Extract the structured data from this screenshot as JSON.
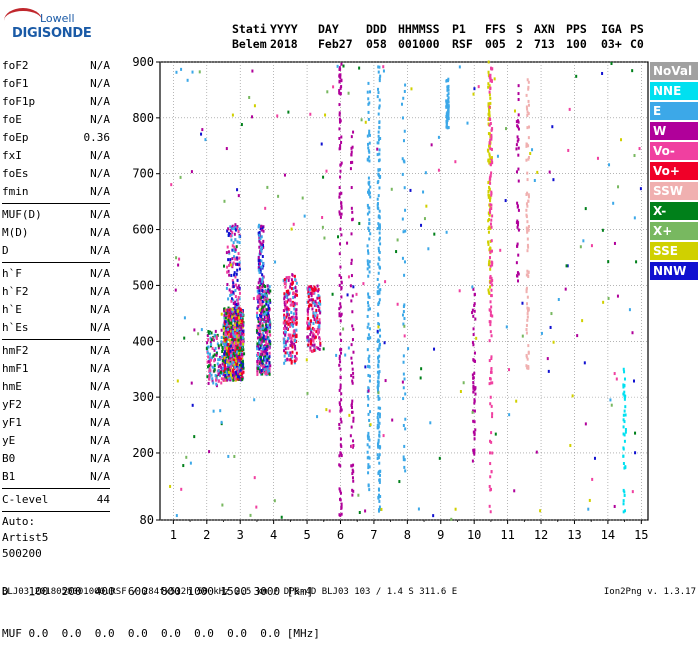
{
  "logo": {
    "line1": "Lowell",
    "line2": "DIGISONDE"
  },
  "header": {
    "row1": [
      "Stati",
      "YYYY",
      "DAY",
      "DDD",
      "HHMMSS",
      "P1",
      "FFS",
      "S",
      "AXN",
      "PPS",
      "IGA",
      "PS"
    ],
    "row2": [
      "Belem",
      "2018",
      "Feb27",
      "058",
      "001000",
      "RSF",
      "005",
      "2",
      "713",
      "100",
      "03+",
      "C0"
    ]
  },
  "params": {
    "g1": [
      {
        "name": "foF2",
        "value": "N/A"
      },
      {
        "name": "foF1",
        "value": "N/A"
      },
      {
        "name": "foF1p",
        "value": "N/A"
      },
      {
        "name": "foE",
        "value": "N/A"
      },
      {
        "name": "foEp",
        "value": "0.36"
      },
      {
        "name": "fxI",
        "value": "N/A"
      },
      {
        "name": "foEs",
        "value": "N/A"
      },
      {
        "name": "fmin",
        "value": "N/A"
      }
    ],
    "g2": [
      {
        "name": "MUF(D)",
        "value": "N/A"
      },
      {
        "name": "M(D)",
        "value": "N/A"
      },
      {
        "name": "D",
        "value": "N/A"
      }
    ],
    "g3": [
      {
        "name": "h`F",
        "value": "N/A"
      },
      {
        "name": "h`F2",
        "value": "N/A"
      },
      {
        "name": "h`E",
        "value": "N/A"
      },
      {
        "name": "h`Es",
        "value": "N/A"
      }
    ],
    "g4": [
      {
        "name": "hmF2",
        "value": "N/A"
      },
      {
        "name": "hmF1",
        "value": "N/A"
      },
      {
        "name": "hmE",
        "value": "N/A"
      },
      {
        "name": "yF2",
        "value": "N/A"
      },
      {
        "name": "yF1",
        "value": "N/A"
      },
      {
        "name": "yE",
        "value": "N/A"
      },
      {
        "name": "B0",
        "value": "N/A"
      },
      {
        "name": "B1",
        "value": "N/A"
      }
    ],
    "g5": [
      {
        "name": "C-level",
        "value": "44"
      }
    ],
    "auto": [
      "Auto:",
      "Artist5",
      "500200"
    ]
  },
  "legend": [
    {
      "label": "NoVal",
      "color": "#a0a0a0"
    },
    {
      "label": "NNE",
      "color": "#00e0f0"
    },
    {
      "label": "E",
      "color": "#3ca8e8"
    },
    {
      "label": "W",
      "color": "#b0009a"
    },
    {
      "label": "Vo-",
      "color": "#f040a0"
    },
    {
      "label": "Vo+",
      "color": "#f00028"
    },
    {
      "label": "SSW",
      "color": "#f0b0b0"
    },
    {
      "label": "X-",
      "color": "#00801a"
    },
    {
      "label": "X+",
      "color": "#78b860"
    },
    {
      "label": "SSE",
      "color": "#d0d000"
    },
    {
      "label": "NNW",
      "color": "#1010d0"
    }
  ],
  "chart_data": {
    "type": "scatter",
    "xlim": [
      0.6,
      15.2
    ],
    "ylim": [
      80,
      900
    ],
    "xticks": [
      "1",
      "2",
      "3",
      "4",
      "5",
      "6",
      "7",
      "8",
      "9",
      "10",
      "11",
      "12",
      "13",
      "14",
      "15"
    ],
    "yticks": [
      "80",
      "200",
      "300",
      "400",
      "500",
      "600",
      "700",
      "800",
      "900"
    ],
    "grid": true,
    "clusters": [
      {
        "x": [
          2.5,
          3.1
        ],
        "y": [
          330,
          460
        ],
        "n": 900,
        "colors": [
          "#b0009a",
          "#f040a0",
          "#3ca8e8",
          "#f00028",
          "#1010d0",
          "#00801a",
          "#d0d000"
        ]
      },
      {
        "x": [
          2.6,
          3.0
        ],
        "y": [
          460,
          610
        ],
        "n": 120,
        "colors": [
          "#b0009a",
          "#f040a0",
          "#3ca8e8",
          "#1010d0"
        ]
      },
      {
        "x": [
          2.0,
          2.5
        ],
        "y": [
          320,
          420
        ],
        "n": 120,
        "colors": [
          "#b0009a",
          "#f040a0",
          "#00801a",
          "#3ca8e8"
        ]
      },
      {
        "x": [
          3.5,
          3.9
        ],
        "y": [
          340,
          500
        ],
        "n": 400,
        "colors": [
          "#b0009a",
          "#3ca8e8",
          "#f040a0",
          "#1010d0",
          "#00801a"
        ]
      },
      {
        "x": [
          3.55,
          3.7
        ],
        "y": [
          500,
          610
        ],
        "n": 80,
        "colors": [
          "#1010d0",
          "#3ca8e8",
          "#b0009a"
        ]
      },
      {
        "x": [
          4.3,
          4.7
        ],
        "y": [
          360,
          520
        ],
        "n": 220,
        "colors": [
          "#b0009a",
          "#f040a0",
          "#3ca8e8",
          "#f00028"
        ]
      },
      {
        "x": [
          5.0,
          5.4
        ],
        "y": [
          380,
          500
        ],
        "n": 160,
        "colors": [
          "#b0009a",
          "#f040a0",
          "#3ca8e8",
          "#f00028"
        ]
      }
    ],
    "columns": [
      {
        "x": 6.0,
        "y": [
          80,
          900
        ],
        "n": 120,
        "color": "#b0009a"
      },
      {
        "x": 6.35,
        "y": [
          120,
          780
        ],
        "n": 60,
        "color": "#b0009a"
      },
      {
        "x": 6.85,
        "y": [
          120,
          870
        ],
        "n": 110,
        "color": "#3ca8e8"
      },
      {
        "x": 7.15,
        "y": [
          90,
          900
        ],
        "n": 180,
        "color": "#3ca8e8"
      },
      {
        "x": 7.9,
        "y": [
          150,
          870
        ],
        "n": 40,
        "color": "#3ca8e8"
      },
      {
        "x": 9.2,
        "y": [
          780,
          870
        ],
        "n": 60,
        "color": "#3ca8e8"
      },
      {
        "x": 10.0,
        "y": [
          180,
          500
        ],
        "n": 50,
        "color": "#b0009a"
      },
      {
        "x": 10.45,
        "y": [
          480,
          900
        ],
        "n": 90,
        "color": "#d0d000"
      },
      {
        "x": 10.5,
        "y": [
          80,
          900
        ],
        "n": 120,
        "color": "#f040a0"
      },
      {
        "x": 11.3,
        "y": [
          500,
          860
        ],
        "n": 40,
        "color": "#b0009a"
      },
      {
        "x": 11.6,
        "y": [
          350,
          880
        ],
        "n": 80,
        "color": "#f0b0b0"
      },
      {
        "x": 14.5,
        "y": [
          80,
          350
        ],
        "n": 40,
        "color": "#00e0f0"
      }
    ],
    "scatter_noise": {
      "n": 260,
      "colors": [
        "#b0009a",
        "#3ca8e8",
        "#1010d0",
        "#f040a0",
        "#00801a",
        "#d0d000",
        "#78b860"
      ]
    }
  },
  "bottom": {
    "row1_label": "D",
    "row1_values": "100  200  400  600  800 1000 1500 3000 [km]",
    "row2_label": "MUF",
    "row2_values": "0.0  0.0  0.0  0.0  0.0  0.0  0.0  0.0 [MHz]"
  },
  "footer": {
    "text": "BLJ03_2018058001000.RSF / 284fx512h 50 kHz 2.5 km / DPS-4D BLJ03 103 / 1.4 S 311.6 E",
    "version": "Ion2Png v. 1.3.17"
  }
}
